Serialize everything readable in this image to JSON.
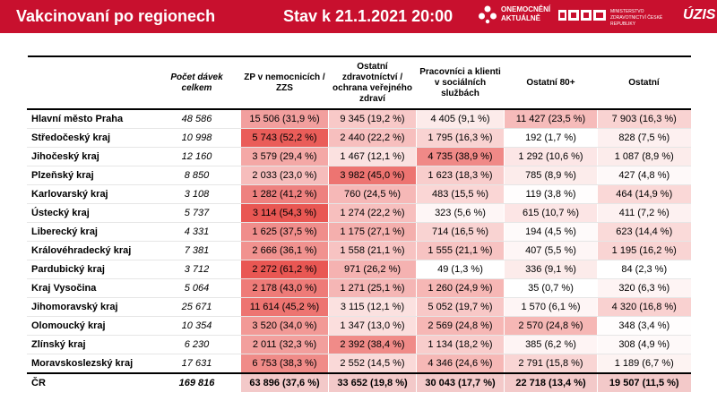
{
  "header": {
    "title": "Vakcinovaní po regionech",
    "stav": "Stav k 21.1.2021 20:00",
    "logo_onemocneni_line1": "ONEMOCNĚNÍ",
    "logo_onemocneni_line2": "AKTUÁLNĚ",
    "logo_mz_text": "MINISTERSTVO ZDRAVOTNICTVÍ ČESKÉ REPUBLIKY",
    "logo_uzis": "ÚZIS"
  },
  "colors": {
    "accent": "#c8102e",
    "heat_base": "#e53935"
  },
  "table": {
    "headers": {
      "region": "",
      "total": "Počet dávek celkem",
      "zp": "ZP v nemocnicích / ZZS",
      "ostatni_zdrav": "Ostatní zdravotníctví / ochrana veřejného zdraví",
      "pracovnici": "Pracovníci a klienti v sociálních službách",
      "ostatni80": "Ostatní 80+",
      "ostatni": "Ostatní"
    },
    "rows": [
      {
        "region": "Hlavní město Praha",
        "total": "48 586",
        "zp": "15 506 (31,9 %)",
        "oz": "9 345 (19,2 %)",
        "pr": "4 405 (9,1 %)",
        "o80": "11 427 (23,5 %)",
        "ost": "7 903 (16,3 %)",
        "p": [
          31.9,
          19.2,
          9.1,
          23.5,
          16.3
        ]
      },
      {
        "region": "Středočeský kraj",
        "total": "10 998",
        "zp": "5 743 (52,2 %)",
        "oz": "2 440 (22,2 %)",
        "pr": "1 795 (16,3 %)",
        "o80": "192 (1,7 %)",
        "ost": "828 (7,5 %)",
        "p": [
          52.2,
          22.2,
          16.3,
          1.7,
          7.5
        ]
      },
      {
        "region": "Jihočeský kraj",
        "total": "12 160",
        "zp": "3 579 (29,4 %)",
        "oz": "1 467 (12,1 %)",
        "pr": "4 735 (38,9 %)",
        "o80": "1 292 (10,6 %)",
        "ost": "1 087 (8,9 %)",
        "p": [
          29.4,
          12.1,
          38.9,
          10.6,
          8.9
        ]
      },
      {
        "region": "Plzeňský kraj",
        "total": "8 850",
        "zp": "2 033 (23,0 %)",
        "oz": "3 982 (45,0 %)",
        "pr": "1 623 (18,3 %)",
        "o80": "785 (8,9 %)",
        "ost": "427 (4,8 %)",
        "p": [
          23.0,
          45.0,
          18.3,
          8.9,
          4.8
        ]
      },
      {
        "region": "Karlovarský kraj",
        "total": "3 108",
        "zp": "1 282 (41,2 %)",
        "oz": "760 (24,5 %)",
        "pr": "483 (15,5 %)",
        "o80": "119 (3,8 %)",
        "ost": "464 (14,9 %)",
        "p": [
          41.2,
          24.5,
          15.5,
          3.8,
          14.9
        ]
      },
      {
        "region": "Ústecký kraj",
        "total": "5 737",
        "zp": "3 114 (54,3 %)",
        "oz": "1 274 (22,2 %)",
        "pr": "323 (5,6 %)",
        "o80": "615 (10,7 %)",
        "ost": "411 (7,2 %)",
        "p": [
          54.3,
          22.2,
          5.6,
          10.7,
          7.2
        ]
      },
      {
        "region": "Liberecký kraj",
        "total": "4 331",
        "zp": "1 625 (37,5 %)",
        "oz": "1 175 (27,1 %)",
        "pr": "714 (16,5 %)",
        "o80": "194 (4,5 %)",
        "ost": "623 (14,4 %)",
        "p": [
          37.5,
          27.1,
          16.5,
          4.5,
          14.4
        ]
      },
      {
        "region": "Královéhradecký kraj",
        "total": "7 381",
        "zp": "2 666 (36,1 %)",
        "oz": "1 558 (21,1 %)",
        "pr": "1 555 (21,1 %)",
        "o80": "407 (5,5 %)",
        "ost": "1 195 (16,2 %)",
        "p": [
          36.1,
          21.1,
          21.1,
          5.5,
          16.2
        ]
      },
      {
        "region": "Pardubický kraj",
        "total": "3 712",
        "zp": "2 272 (61,2 %)",
        "oz": "971 (26,2 %)",
        "pr": "49 (1,3 %)",
        "o80": "336 (9,1 %)",
        "ost": "84 (2,3 %)",
        "p": [
          61.2,
          26.2,
          1.3,
          9.1,
          2.3
        ]
      },
      {
        "region": "Kraj Vysočina",
        "total": "5 064",
        "zp": "2 178 (43,0 %)",
        "oz": "1 271 (25,1 %)",
        "pr": "1 260 (24,9 %)",
        "o80": "35 (0,7 %)",
        "ost": "320 (6,3 %)",
        "p": [
          43.0,
          25.1,
          24.9,
          0.7,
          6.3
        ]
      },
      {
        "region": "Jihomoravský kraj",
        "total": "25 671",
        "zp": "11 614 (45,2 %)",
        "oz": "3 115 (12,1 %)",
        "pr": "5 052 (19,7 %)",
        "o80": "1 570 (6,1 %)",
        "ost": "4 320 (16,8 %)",
        "p": [
          45.2,
          12.1,
          19.7,
          6.1,
          16.8
        ]
      },
      {
        "region": "Olomoucký kraj",
        "total": "10 354",
        "zp": "3 520 (34,0 %)",
        "oz": "1 347 (13,0 %)",
        "pr": "2 569 (24,8 %)",
        "o80": "2 570 (24,8 %)",
        "ost": "348 (3,4 %)",
        "p": [
          34.0,
          13.0,
          24.8,
          24.8,
          3.4
        ]
      },
      {
        "region": "Zlínský kraj",
        "total": "6 230",
        "zp": "2 011 (32,3 %)",
        "oz": "2 392 (38,4 %)",
        "pr": "1 134 (18,2 %)",
        "o80": "385 (6,2 %)",
        "ost": "308 (4,9 %)",
        "p": [
          32.3,
          38.4,
          18.2,
          6.2,
          4.9
        ]
      },
      {
        "region": "Moravskoslezský kraj",
        "total": "17 631",
        "zp": "6 753 (38,3 %)",
        "oz": "2 552 (14,5 %)",
        "pr": "4 346 (24,6 %)",
        "o80": "2 791 (15,8 %)",
        "ost": "1 189 (6,7 %)",
        "p": [
          38.3,
          14.5,
          24.6,
          15.8,
          6.7
        ]
      }
    ],
    "sum": {
      "region": "ČR",
      "total": "169 816",
      "zp": "63 896 (37,6 %)",
      "oz": "33 652 (19,8 %)",
      "pr": "30 043 (17,7 %)",
      "o80": "22 718 (13,4 %)",
      "ost": "19 507 (11,5 %)",
      "p": [
        37.6,
        19.8,
        17.7,
        13.4,
        11.5
      ]
    }
  }
}
